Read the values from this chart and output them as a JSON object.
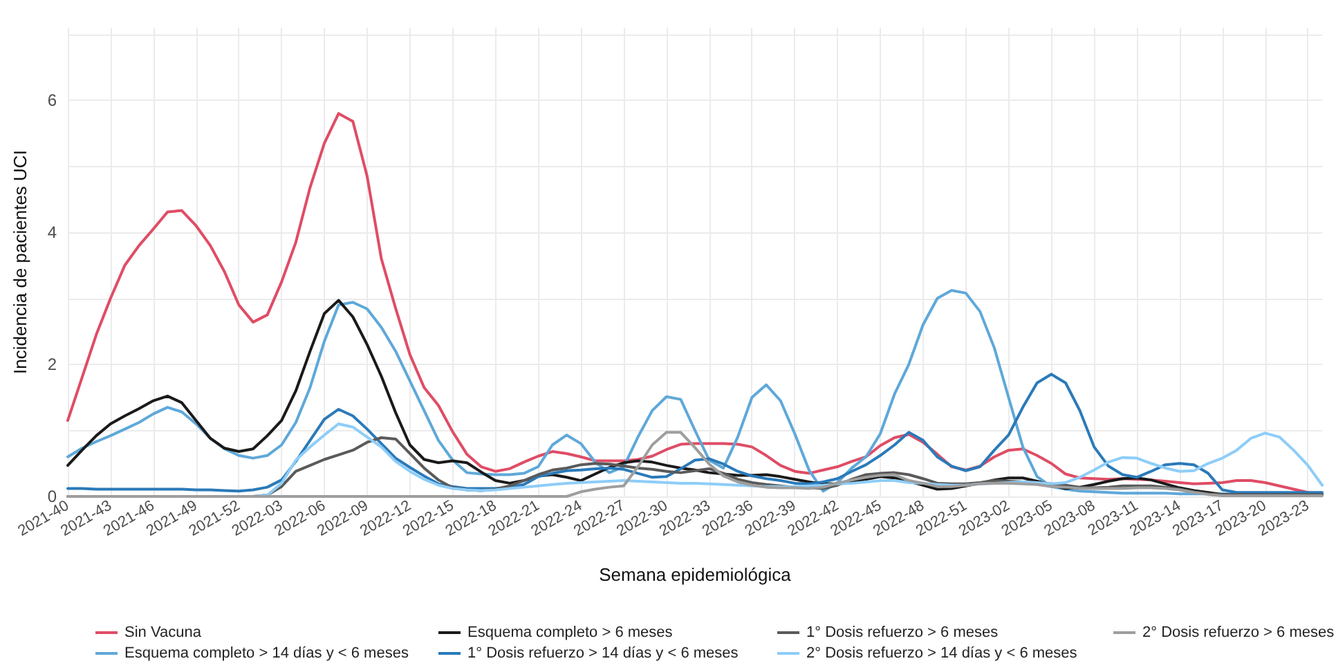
{
  "chart_data": {
    "type": "line",
    "xlabel": "Semana epidemiológica",
    "ylabel": "Incidencia de pacientes UCI",
    "categories": [
      "2021-40",
      null,
      null,
      "2021-43",
      null,
      null,
      "2021-46",
      null,
      null,
      "2021-49",
      null,
      null,
      "2021-52",
      null,
      null,
      "2022-03",
      null,
      null,
      "2022-06",
      null,
      null,
      "2022-09",
      null,
      null,
      "2022-12",
      null,
      null,
      "2022-15",
      null,
      null,
      "2022-18",
      null,
      null,
      "2022-21",
      null,
      null,
      "2022-24",
      null,
      null,
      "2022-27",
      null,
      null,
      "2022-30",
      null,
      null,
      "2022-33",
      null,
      null,
      "2022-36",
      null,
      null,
      "2022-39",
      null,
      null,
      "2022-42",
      null,
      null,
      "2022-45",
      null,
      null,
      "2022-48",
      null,
      null,
      "2022-51",
      null,
      null,
      "2023-02",
      null,
      null,
      "2023-05",
      null,
      null,
      "2023-08",
      null,
      null,
      "2023-11",
      null,
      null,
      "2023-14",
      null,
      null,
      "2023-17",
      null,
      null,
      "2023-20",
      null,
      null,
      "2023-23",
      null
    ],
    "series": [
      {
        "name": "Sin Vacuna",
        "color": "#df4d65",
        "values": [
          1.15,
          1.8,
          2.45,
          3.0,
          3.5,
          3.8,
          4.05,
          4.31,
          4.33,
          4.1,
          3.8,
          3.4,
          2.9,
          2.64,
          2.75,
          3.25,
          3.85,
          4.68,
          5.35,
          5.8,
          5.68,
          4.85,
          3.6,
          2.85,
          2.15,
          1.65,
          1.38,
          0.98,
          0.64,
          0.45,
          0.38,
          0.42,
          0.52,
          0.61,
          0.68,
          0.65,
          0.6,
          0.54,
          0.54,
          0.54,
          0.56,
          0.61,
          0.71,
          0.79,
          0.8,
          0.8,
          0.8,
          0.79,
          0.75,
          0.62,
          0.47,
          0.38,
          0.35,
          0.4,
          0.45,
          0.53,
          0.6,
          0.77,
          0.89,
          0.94,
          0.82,
          0.64,
          0.45,
          0.4,
          0.46,
          0.6,
          0.7,
          0.72,
          0.62,
          0.5,
          0.34,
          0.28,
          0.27,
          0.26,
          0.27,
          0.26,
          0.25,
          0.23,
          0.21,
          0.19,
          0.2,
          0.21,
          0.24,
          0.24,
          0.21,
          0.16,
          0.11,
          0.06,
          0.03
        ]
      },
      {
        "name": "Esquema completo > 14 días y < 6 meses",
        "color": "#5fa8d9",
        "values": [
          0.6,
          0.73,
          0.83,
          0.92,
          1.02,
          1.12,
          1.25,
          1.35,
          1.28,
          1.1,
          0.88,
          0.72,
          0.62,
          0.58,
          0.62,
          0.78,
          1.12,
          1.65,
          2.35,
          2.9,
          2.94,
          2.84,
          2.56,
          2.2,
          1.75,
          1.3,
          0.85,
          0.55,
          0.36,
          0.34,
          0.33,
          0.33,
          0.35,
          0.45,
          0.78,
          0.93,
          0.8,
          0.52,
          0.36,
          0.45,
          0.9,
          1.3,
          1.51,
          1.47,
          1.0,
          0.55,
          0.43,
          0.9,
          1.5,
          1.69,
          1.45,
          0.95,
          0.4,
          0.08,
          0.21,
          0.43,
          0.6,
          0.95,
          1.55,
          2.0,
          2.6,
          3.0,
          3.12,
          3.08,
          2.8,
          2.25,
          1.5,
          0.75,
          0.3,
          0.15,
          0.11,
          0.08,
          0.07,
          0.06,
          0.05,
          0.05,
          0.05,
          0.05,
          0.04,
          0.04,
          0.04,
          0.04,
          0.04,
          0.04,
          0.04,
          0.04,
          0.04,
          0.04,
          0.04
        ]
      },
      {
        "name": "Esquema completo > 6 meses",
        "color": "#1a1a1a",
        "values": [
          0.47,
          0.7,
          0.92,
          1.1,
          1.22,
          1.33,
          1.45,
          1.52,
          1.42,
          1.15,
          0.88,
          0.73,
          0.68,
          0.72,
          0.92,
          1.15,
          1.6,
          2.2,
          2.77,
          2.97,
          2.72,
          2.3,
          1.82,
          1.27,
          0.78,
          0.56,
          0.51,
          0.54,
          0.51,
          0.37,
          0.24,
          0.2,
          0.24,
          0.31,
          0.33,
          0.29,
          0.24,
          0.34,
          0.44,
          0.51,
          0.54,
          0.52,
          0.47,
          0.43,
          0.4,
          0.36,
          0.34,
          0.32,
          0.32,
          0.33,
          0.3,
          0.26,
          0.22,
          0.19,
          0.19,
          0.21,
          0.26,
          0.3,
          0.28,
          0.23,
          0.17,
          0.11,
          0.12,
          0.16,
          0.2,
          0.25,
          0.28,
          0.28,
          0.23,
          0.17,
          0.12,
          0.14,
          0.18,
          0.23,
          0.27,
          0.28,
          0.25,
          0.19,
          0.13,
          0.09,
          0.06,
          0.03,
          0.02,
          0.02,
          0.02,
          0.02,
          0.02,
          0.02,
          0.02
        ]
      },
      {
        "name": "1° Dosis refuerzo > 14 días y < 6 meses",
        "color": "#2a7ab9",
        "values": [
          0.12,
          0.12,
          0.11,
          0.11,
          0.11,
          0.11,
          0.11,
          0.11,
          0.11,
          0.1,
          0.1,
          0.09,
          0.08,
          0.1,
          0.14,
          0.25,
          0.53,
          0.85,
          1.17,
          1.32,
          1.22,
          1.02,
          0.8,
          0.58,
          0.44,
          0.31,
          0.19,
          0.15,
          0.12,
          0.12,
          0.12,
          0.14,
          0.18,
          0.3,
          0.35,
          0.39,
          0.4,
          0.42,
          0.43,
          0.41,
          0.35,
          0.29,
          0.3,
          0.42,
          0.55,
          0.57,
          0.49,
          0.38,
          0.31,
          0.27,
          0.24,
          0.2,
          0.19,
          0.22,
          0.27,
          0.38,
          0.48,
          0.62,
          0.78,
          0.97,
          0.85,
          0.6,
          0.46,
          0.39,
          0.45,
          0.7,
          0.93,
          1.35,
          1.72,
          1.85,
          1.72,
          1.3,
          0.75,
          0.46,
          0.33,
          0.29,
          0.38,
          0.48,
          0.5,
          0.48,
          0.35,
          0.1,
          0.06,
          0.06,
          0.06,
          0.06,
          0.06,
          0.06,
          0.06
        ]
      },
      {
        "name": "1° Dosis refuerzo > 6 meses",
        "color": "#5a5a5a",
        "values": [
          0,
          0,
          0,
          0,
          0,
          0,
          0,
          0,
          0,
          0,
          0,
          0,
          0,
          0,
          0.02,
          0.15,
          0.38,
          0.47,
          0.56,
          0.63,
          0.7,
          0.82,
          0.89,
          0.87,
          0.65,
          0.43,
          0.25,
          0.13,
          0.1,
          0.09,
          0.11,
          0.16,
          0.24,
          0.33,
          0.4,
          0.43,
          0.48,
          0.5,
          0.49,
          0.46,
          0.43,
          0.41,
          0.38,
          0.36,
          0.39,
          0.42,
          0.35,
          0.26,
          0.21,
          0.18,
          0.16,
          0.14,
          0.13,
          0.12,
          0.17,
          0.26,
          0.33,
          0.35,
          0.36,
          0.33,
          0.27,
          0.2,
          0.19,
          0.19,
          0.21,
          0.24,
          0.23,
          0.22,
          0.21,
          0.19,
          0.17,
          0.14,
          0.13,
          0.14,
          0.16,
          0.16,
          0.16,
          0.14,
          0.11,
          0.07,
          0.04,
          0.03,
          0.03,
          0.03,
          0.03,
          0.03,
          0.03,
          0.03,
          0.03
        ]
      },
      {
        "name": "2° Dosis refuerzo > 14 días y < 6 meses",
        "color": "#8ecdf8",
        "values": [
          null,
          null,
          null,
          null,
          null,
          null,
          null,
          null,
          null,
          null,
          null,
          null,
          null,
          0,
          0.02,
          0.2,
          0.55,
          0.75,
          0.93,
          1.1,
          1.05,
          0.9,
          0.75,
          0.53,
          0.38,
          0.26,
          0.17,
          0.12,
          0.1,
          0.09,
          0.1,
          0.12,
          0.14,
          0.16,
          0.18,
          0.2,
          0.21,
          0.22,
          0.23,
          0.24,
          0.23,
          0.22,
          0.21,
          0.2,
          0.2,
          0.19,
          0.18,
          0.17,
          0.16,
          0.15,
          0.15,
          0.15,
          0.16,
          0.17,
          0.19,
          0.2,
          0.22,
          0.24,
          0.24,
          0.21,
          0.2,
          0.18,
          0.17,
          0.17,
          0.19,
          0.2,
          0.21,
          0.22,
          0.21,
          0.19,
          0.21,
          0.29,
          0.4,
          0.52,
          0.59,
          0.58,
          0.5,
          0.43,
          0.38,
          0.39,
          0.5,
          0.58,
          0.7,
          0.88,
          0.96,
          0.9,
          0.7,
          0.47,
          0.17
        ]
      },
      {
        "name": "2° Dosis refuerzo > 6 meses",
        "color": "#9e9e9e",
        "values": [
          0,
          0,
          0,
          0,
          0,
          0,
          0,
          0,
          0,
          0,
          0,
          0,
          0,
          0,
          0,
          0,
          0,
          0,
          0,
          0,
          0,
          0,
          0,
          0,
          0,
          0,
          0,
          0,
          0,
          0,
          0,
          0,
          0,
          0,
          0,
          0,
          0.07,
          0.11,
          0.14,
          0.16,
          0.45,
          0.78,
          0.97,
          0.97,
          0.74,
          0.49,
          0.31,
          0.22,
          0.17,
          0.14,
          0.13,
          0.13,
          0.12,
          0.14,
          0.2,
          0.25,
          0.29,
          0.32,
          0.33,
          0.24,
          0.2,
          0.15,
          0.15,
          0.17,
          0.19,
          0.2,
          0.2,
          0.19,
          0.18,
          0.15,
          0.14,
          0.12,
          0.12,
          0.12,
          0.12,
          0.13,
          0.13,
          0.12,
          0.1,
          0.06,
          0.03,
          0.01,
          0.01,
          0.01,
          0.01,
          0.01,
          0.01,
          0.01,
          0.01
        ]
      }
    ],
    "ylim": [
      0,
      7.1
    ],
    "yticks": [
      0,
      {
        "value": 1,
        "label": null
      },
      2,
      {
        "value": 3,
        "label": null
      },
      4,
      {
        "value": 5,
        "label": null
      },
      6,
      {
        "value": 7,
        "label": null
      }
    ],
    "grid": true,
    "legend": "bottom"
  }
}
